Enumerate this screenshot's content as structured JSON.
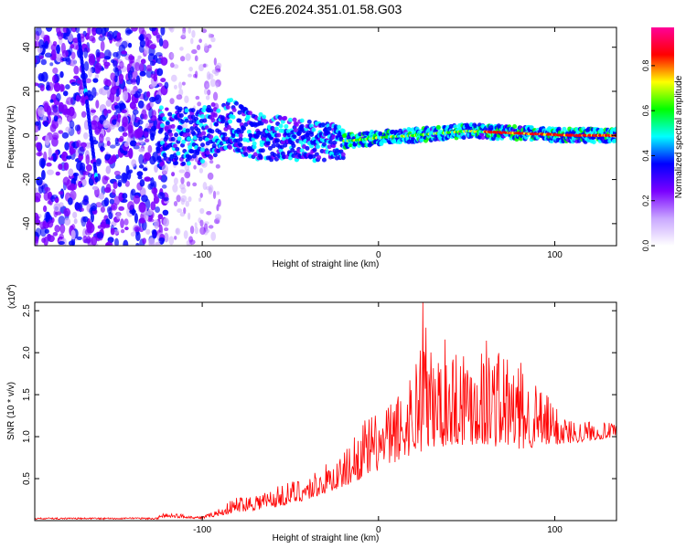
{
  "title": "C2E6.2024.351.01.58.G03",
  "chart_data": [
    {
      "type": "heatmap",
      "xlabel": "Height of straight line (km)",
      "ylabel": "Frequency (Hz)",
      "xlim": [
        -195,
        135
      ],
      "ylim": [
        -50,
        49
      ],
      "x_ticks": [
        -100,
        0,
        100
      ],
      "y_ticks": [
        -40,
        -20,
        0,
        20,
        40
      ],
      "colorbar": {
        "label": "Normalized spectral amplitude",
        "range": [
          0,
          0.97
        ],
        "ticks": [
          "0.0",
          "0.2",
          "0.4",
          "0.6",
          "0.8"
        ],
        "tick_values": [
          0,
          0.2,
          0.4,
          0.6,
          0.8
        ],
        "colormap": [
          "#ffffff",
          "#c9a7ff",
          "#7a00ff",
          "#0000ff",
          "#00ffff",
          "#00ff00",
          "#ffff00",
          "#ff0000",
          "#ff0099"
        ]
      },
      "ridge_line": {
        "x": [
          -195,
          -150,
          -120,
          -100,
          -85,
          -70,
          -50,
          -30,
          -10,
          0,
          20,
          50,
          80,
          110,
          135
        ],
        "y": [
          0,
          0,
          0,
          0,
          5,
          0,
          -2,
          -3,
          -2,
          -1,
          0,
          2,
          1,
          0,
          0
        ]
      },
      "diagonal_streak": {
        "x": [
          -170,
          -160
        ],
        "y": [
          45,
          -20
        ]
      }
    },
    {
      "type": "line",
      "xlabel": "Height of straight line (km)",
      "ylabel": "SNR (10 * v/v)",
      "y_multiplier": "(x10",
      "y_multiplier_exp": "4",
      "y_multiplier_close": ")",
      "xlim": [
        -195,
        135
      ],
      "ylim": [
        0,
        2.6
      ],
      "x_ticks": [
        -100,
        0,
        100
      ],
      "y_ticks": [
        "0.5",
        "1.0",
        "1.5",
        "2.0",
        "2.5"
      ],
      "y_tick_values": [
        0.5,
        1.0,
        1.5,
        2.0,
        2.5
      ],
      "color": "#ff0000",
      "series_envelope": {
        "x": [
          -195,
          -130,
          -120,
          -100,
          -90,
          -80,
          -60,
          -40,
          -20,
          -10,
          0,
          10,
          20,
          25,
          30,
          40,
          60,
          70,
          80,
          100,
          110,
          120,
          135
        ],
        "y": [
          0.02,
          0.03,
          0.1,
          0.05,
          0.15,
          0.3,
          0.4,
          0.55,
          0.8,
          1.2,
          1.3,
          1.5,
          1.9,
          2.6,
          2.1,
          2.2,
          2.25,
          2.1,
          1.9,
          1.4,
          1.2,
          1.2,
          1.15
        ]
      },
      "series_baseline": {
        "x": [
          -195,
          -130,
          -120,
          -100,
          -80,
          -60,
          -40,
          -20,
          0,
          20,
          40,
          60,
          80,
          100,
          120,
          135
        ],
        "y": [
          0.01,
          0.02,
          0.04,
          0.02,
          0.1,
          0.15,
          0.25,
          0.4,
          0.6,
          0.8,
          0.9,
          0.9,
          0.85,
          0.9,
          0.95,
          1.0
        ]
      },
      "peak": {
        "x": 25,
        "y": 2.6
      }
    }
  ]
}
